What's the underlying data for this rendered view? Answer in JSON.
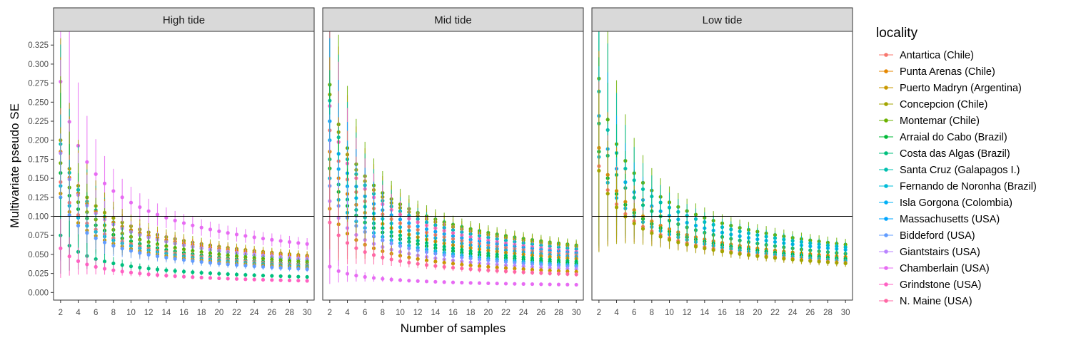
{
  "chart_data": {
    "type": "scatter",
    "facet_variable": "tide level",
    "panels": [
      "High tide",
      "Mid tide",
      "Low tide"
    ],
    "xlabel": "Number of samples",
    "ylabel": "Multivariate pseudo SE",
    "x_tick_labels": [
      "2",
      "4",
      "6",
      "8",
      "10",
      "12",
      "14",
      "16",
      "18",
      "20",
      "22",
      "24",
      "26",
      "28",
      "30"
    ],
    "y_tick_labels": [
      "0.000",
      "0.025",
      "0.050",
      "0.075",
      "0.100",
      "0.125",
      "0.150",
      "0.175",
      "0.200",
      "0.225",
      "0.250",
      "0.275",
      "0.300",
      "0.325"
    ],
    "xlim": [
      1.2,
      30.8
    ],
    "ylim": [
      -0.01,
      0.343
    ],
    "reference_line_y": 0.1,
    "error_bars": true,
    "legend_position": "right",
    "legend_title": "locality",
    "legend": [
      {
        "name": "Antartica (Chile)",
        "color": "#F8766D"
      },
      {
        "name": "Punta Arenas (Chile)",
        "color": "#E58700"
      },
      {
        "name": "Puerto Madryn (Argentina)",
        "color": "#C99800"
      },
      {
        "name": "Concepcion (Chile)",
        "color": "#A3A500"
      },
      {
        "name": "Montemar (Chile)",
        "color": "#6BB100"
      },
      {
        "name": "Arraial do Cabo (Brazil)",
        "color": "#00BA38"
      },
      {
        "name": "Costa das Algas (Brazil)",
        "color": "#00BF7D"
      },
      {
        "name": "Santa Cruz (Galapagos I.)",
        "color": "#00C0AF"
      },
      {
        "name": "Fernando de Noronha (Brazil)",
        "color": "#00BCD8"
      },
      {
        "name": "Isla Gorgona (Colombia)",
        "color": "#00B0F6"
      },
      {
        "name": "Massachusetts (USA)",
        "color": "#00A5FF"
      },
      {
        "name": "Biddeford (USA)",
        "color": "#619CFF"
      },
      {
        "name": "Giantstairs (USA)",
        "color": "#B983FF"
      },
      {
        "name": "Chamberlain (USA)",
        "color": "#E76BF3"
      },
      {
        "name": "Grindstone (USA)",
        "color": "#FF61C3"
      },
      {
        "name": "N. Maine (USA)",
        "color": "#FF67A4"
      }
    ],
    "series_note": "Each point: mean pseudo SE at n samples (2..30); whiskers show variability.",
    "series": [
      {
        "panel": "High tide",
        "name": "Chamberlain (USA)",
        "color": "#E76BF3",
        "y_at_2": 0.277,
        "y_at_30": 0.075
      },
      {
        "panel": "High tide",
        "name": "Concepcion (Chile)",
        "color": "#A3A500",
        "y_at_2": 0.2,
        "y_at_30": 0.057
      },
      {
        "panel": "High tide",
        "name": "Santa Cruz (Galapagos I.)",
        "color": "#00C0AF",
        "y_at_2": 0.195,
        "y_at_30": 0.05
      },
      {
        "panel": "High tide",
        "name": "Punta Arenas (Chile)",
        "color": "#E58700",
        "y_at_2": 0.185,
        "y_at_30": 0.055
      },
      {
        "panel": "High tide",
        "name": "Giantstairs (USA)",
        "color": "#B983FF",
        "y_at_2": 0.183,
        "y_at_30": 0.052
      },
      {
        "panel": "High tide",
        "name": "Montemar (Chile)",
        "color": "#6BB100",
        "y_at_2": 0.17,
        "y_at_30": 0.047
      },
      {
        "panel": "High tide",
        "name": "Arraial do Cabo (Brazil)",
        "color": "#00BA38",
        "y_at_2": 0.157,
        "y_at_30": 0.043
      },
      {
        "panel": "High tide",
        "name": "Antartica (Chile)",
        "color": "#F8766D",
        "y_at_2": 0.145,
        "y_at_30": 0.042
      },
      {
        "panel": "High tide",
        "name": "Fernando de Noronha (Brazil)",
        "color": "#00BCD8",
        "y_at_2": 0.14,
        "y_at_30": 0.04
      },
      {
        "panel": "High tide",
        "name": "Puerto Madryn (Argentina)",
        "color": "#C99800",
        "y_at_2": 0.13,
        "y_at_30": 0.038
      },
      {
        "panel": "High tide",
        "name": "Biddeford (USA)",
        "color": "#619CFF",
        "y_at_2": 0.125,
        "y_at_30": 0.036
      },
      {
        "panel": "High tide",
        "name": "Costa das Algas (Brazil)",
        "color": "#00BF7D",
        "y_at_2": 0.075,
        "y_at_30": 0.024
      },
      {
        "panel": "High tide",
        "name": "Grindstone (USA)",
        "color": "#FF61C3",
        "y_at_2": 0.058,
        "y_at_30": 0.018
      },
      {
        "panel": "Mid tide",
        "name": "Montemar (Chile)",
        "color": "#6BB100",
        "y_at_2": 0.273,
        "y_at_30": 0.073
      },
      {
        "panel": "Mid tide",
        "name": "Concepcion (Chile)",
        "color": "#A3A500",
        "y_at_2": 0.26,
        "y_at_30": 0.071
      },
      {
        "panel": "Mid tide",
        "name": "Santa Cruz (Galapagos I.)",
        "color": "#00C0AF",
        "y_at_2": 0.252,
        "y_at_30": 0.067
      },
      {
        "panel": "Mid tide",
        "name": "Grindstone (USA)",
        "color": "#FF61C3",
        "y_at_2": 0.245,
        "y_at_30": 0.063
      },
      {
        "panel": "Mid tide",
        "name": "Massachusetts (USA)",
        "color": "#00A5FF",
        "y_at_2": 0.225,
        "y_at_30": 0.061
      },
      {
        "panel": "Mid tide",
        "name": "Antartica (Chile)",
        "color": "#F8766D",
        "y_at_2": 0.213,
        "y_at_30": 0.058
      },
      {
        "panel": "Mid tide",
        "name": "Isla Gorgona (Colombia)",
        "color": "#00B0F6",
        "y_at_2": 0.2,
        "y_at_30": 0.055
      },
      {
        "panel": "Mid tide",
        "name": "Punta Arenas (Chile)",
        "color": "#E58700",
        "y_at_2": 0.185,
        "y_at_30": 0.052
      },
      {
        "panel": "Mid tide",
        "name": "Costa das Algas (Brazil)",
        "color": "#00BF7D",
        "y_at_2": 0.175,
        "y_at_30": 0.048
      },
      {
        "panel": "Mid tide",
        "name": "Arraial do Cabo (Brazil)",
        "color": "#00BA38",
        "y_at_2": 0.163,
        "y_at_30": 0.045
      },
      {
        "panel": "Mid tide",
        "name": "Fernando de Noronha (Brazil)",
        "color": "#00BCD8",
        "y_at_2": 0.15,
        "y_at_30": 0.042
      },
      {
        "panel": "Mid tide",
        "name": "Biddeford (USA)",
        "color": "#619CFF",
        "y_at_2": 0.14,
        "y_at_30": 0.04
      },
      {
        "panel": "Mid tide",
        "name": "Giantstairs (USA)",
        "color": "#B983FF",
        "y_at_2": 0.12,
        "y_at_30": 0.036
      },
      {
        "panel": "Mid tide",
        "name": "Puerto Madryn (Argentina)",
        "color": "#C99800",
        "y_at_2": 0.11,
        "y_at_30": 0.032
      },
      {
        "panel": "Mid tide",
        "name": "N. Maine (USA)",
        "color": "#FF67A4",
        "y_at_2": 0.092,
        "y_at_30": 0.028
      },
      {
        "panel": "Mid tide",
        "name": "Chamberlain (USA)",
        "color": "#E76BF3",
        "y_at_2": 0.034,
        "y_at_30": 0.012
      },
      {
        "panel": "Low tide",
        "name": "Montemar (Chile)",
        "color": "#6BB100",
        "y_at_2": 0.281,
        "y_at_30": 0.074
      },
      {
        "panel": "Low tide",
        "name": "Santa Cruz (Galapagos I.)",
        "color": "#00C0AF",
        "y_at_2": 0.264,
        "y_at_30": 0.07
      },
      {
        "panel": "Low tide",
        "name": "Isla Gorgona (Colombia)",
        "color": "#00B0F6",
        "y_at_2": 0.232,
        "y_at_30": 0.066
      },
      {
        "panel": "Low tide",
        "name": "Costa das Algas (Brazil)",
        "color": "#00BF7D",
        "y_at_2": 0.222,
        "y_at_30": 0.06
      },
      {
        "panel": "Low tide",
        "name": "Punta Arenas (Chile)",
        "color": "#E58700",
        "y_at_2": 0.19,
        "y_at_30": 0.055
      },
      {
        "panel": "Low tide",
        "name": "Arraial do Cabo (Brazil)",
        "color": "#00BA38",
        "y_at_2": 0.185,
        "y_at_30": 0.052
      },
      {
        "panel": "Low tide",
        "name": "Fernando de Noronha (Brazil)",
        "color": "#00BCD8",
        "y_at_2": 0.178,
        "y_at_30": 0.049
      },
      {
        "panel": "Low tide",
        "name": "Antartica (Chile)",
        "color": "#F8766D",
        "y_at_2": 0.166,
        "y_at_30": 0.046
      },
      {
        "panel": "Low tide",
        "name": "Concepcion (Chile)",
        "color": "#A3A500",
        "y_at_2": 0.16,
        "y_at_30": 0.045
      }
    ]
  }
}
